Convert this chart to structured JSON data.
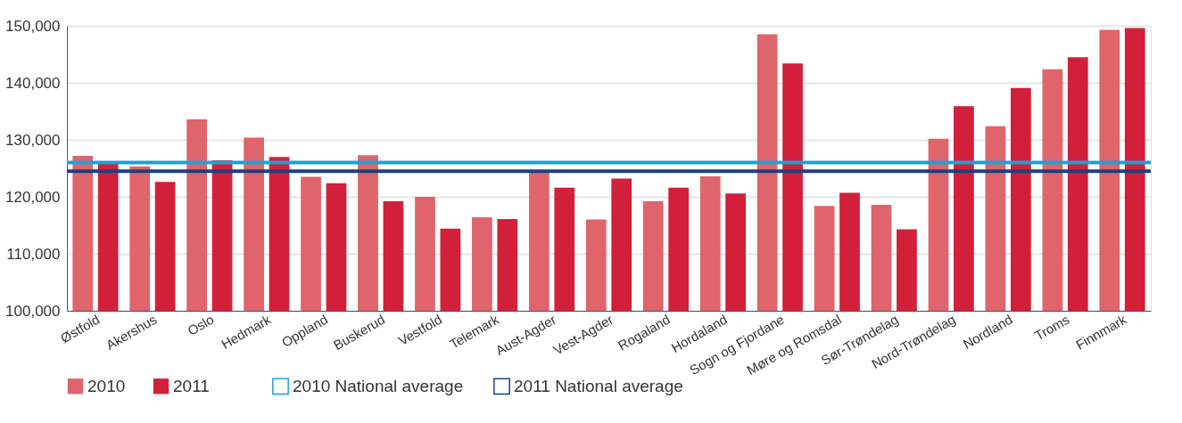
{
  "chart_data": {
    "type": "bar",
    "categories": [
      "Østfold",
      "Akershus",
      "Oslo",
      "Hedmark",
      "Oppland",
      "Buskerud",
      "Vestfold",
      "Telemark",
      "Aust-Agder",
      "Vest-Agder",
      "Rogaland",
      "Hordaland",
      "Sogn og Fjordane",
      "Møre og Romsdal",
      "Sør-Trøndelag",
      "Nord-Trøndelag",
      "Nordland",
      "Troms",
      "Finnmark"
    ],
    "series": [
      {
        "name": "2010",
        "color": "#df646c",
        "values": [
          127200,
          125300,
          133600,
          130400,
          123500,
          127300,
          120000,
          116400,
          124600,
          116000,
          119200,
          123600,
          148500,
          118400,
          118600,
          130200,
          132400,
          142400,
          149300
        ]
      },
      {
        "name": "2011",
        "color": "#d2203a",
        "values": [
          125800,
          122600,
          126400,
          127000,
          122400,
          119200,
          114400,
          116100,
          121600,
          123200,
          121600,
          120600,
          143400,
          120700,
          114300,
          135900,
          139100,
          144500,
          149600
        ]
      }
    ],
    "ref_lines": [
      {
        "axis": "y",
        "value": 126000,
        "label": "2010 National average",
        "color": "#1ba1dc"
      },
      {
        "axis": "y",
        "value": 124500,
        "label": "2011 National average",
        "color": "#1f3f7f"
      }
    ],
    "ylim": [
      100000,
      150000
    ],
    "yticks": [
      {
        "value": 100000,
        "label": "100,000"
      },
      {
        "value": 110000,
        "label": "110,000"
      },
      {
        "value": 120000,
        "label": "120,000"
      },
      {
        "value": 130000,
        "label": "130,000"
      },
      {
        "value": 140000,
        "label": "140,000"
      },
      {
        "value": 150000,
        "label": "150,000"
      }
    ],
    "grid": "y",
    "legend": "bottom left"
  }
}
